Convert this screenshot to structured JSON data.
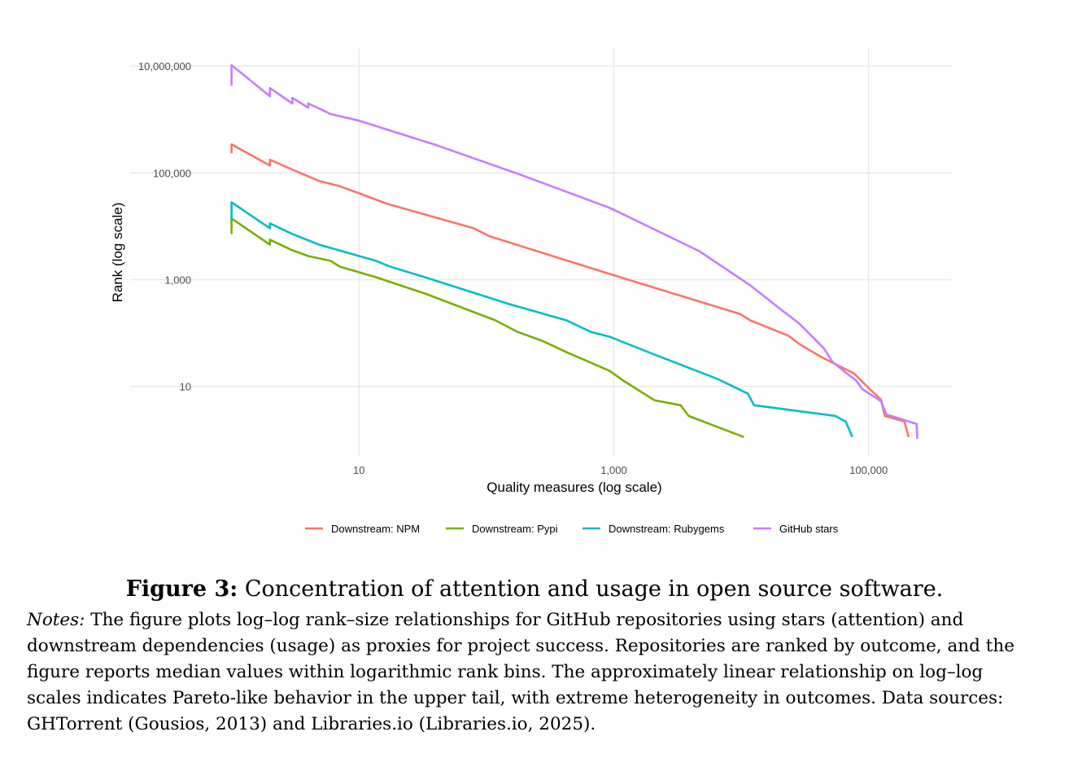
{
  "chart_data": {
    "type": "line",
    "title": "",
    "xlabel": "Quality measures (log scale)",
    "ylabel": "Rank (log scale)",
    "xscale": "log",
    "yscale": "log",
    "xlim": [
      0.16,
      450000
    ],
    "ylim": [
      0.5,
      21000000
    ],
    "grid": true,
    "legend_position": "bottom",
    "x_ticks": [
      {
        "value": 10,
        "label": "10"
      },
      {
        "value": 1000,
        "label": "1,000"
      },
      {
        "value": 100000,
        "label": "100,000"
      }
    ],
    "y_ticks": [
      {
        "value": 10,
        "label": "10"
      },
      {
        "value": 1000,
        "label": "1,000"
      },
      {
        "value": 100000,
        "label": "100,000"
      },
      {
        "value": 10000000,
        "label": "10,000,000"
      }
    ],
    "series": [
      {
        "name": "Downstream: NPM",
        "color": "#F8766D",
        "x": [
          1,
          1,
          2,
          2,
          3,
          4.86,
          6.92,
          10,
          16.7,
          79.6,
          107,
          929,
          9780,
          11800,
          23600,
          28600,
          42600,
          76700,
          103000,
          125000,
          134000,
          191000,
          206000
        ],
        "y": [
          232000,
          342000,
          137000,
          176000,
          115000,
          70400,
          57000,
          41500,
          26300,
          9160,
          6440,
          1280,
          228,
          173,
          88.4,
          62.2,
          35.5,
          17.5,
          8.7,
          5.7,
          2.8,
          2.2,
          1.13
        ]
      },
      {
        "name": "Downstream: Pypi",
        "color": "#7CAE00",
        "x": [
          1,
          1,
          2,
          2,
          3,
          4,
          6,
          7.03,
          13.6,
          32.9,
          118,
          176,
          274,
          426,
          929,
          1190,
          2090,
          3340,
          3870,
          10500
        ],
        "y": [
          7160,
          14000,
          4530,
          5600,
          3550,
          2770,
          2250,
          1760,
          1110,
          550,
          173,
          105,
          71.6,
          43.8,
          19.5,
          12.8,
          5.5,
          4.46,
          2.8,
          1.13
        ]
      },
      {
        "name": "Downstream: Rubygems",
        "color": "#00BFC4",
        "x": [
          1,
          1,
          2,
          2,
          3,
          4.86,
          13.6,
          17.5,
          32.9,
          152,
          426,
          662,
          929,
          1940,
          6580,
          11300,
          12600,
          54700,
          66200,
          74500
        ],
        "y": [
          13000,
          28200,
          9160,
          11300,
          7160,
          4530,
          2250,
          1760,
          1110,
          348,
          173,
          105,
          85.4,
          42.3,
          13.7,
          7.3,
          4.46,
          2.8,
          2.2,
          1.13
        ]
      },
      {
        "name": "GitHub stars",
        "color": "#C77CFF",
        "x": [
          1,
          1,
          2,
          2,
          3,
          3,
          4,
          4,
          6,
          10,
          40.5,
          176,
          929,
          4690,
          11800,
          19500,
          28600,
          44500,
          51600,
          66200,
          80200,
          88900,
          125000,
          138000,
          238000,
          241000
        ],
        "y": [
          4300000,
          10400000,
          2720000,
          3870000,
          1990000,
          2540000,
          1660000,
          1990000,
          1260000,
          949000,
          330000,
          96600,
          22100,
          3420,
          782,
          303,
          150,
          52,
          29.7,
          18.2,
          12.8,
          9.0,
          5.3,
          3.0,
          1.99,
          1.05
        ]
      }
    ]
  },
  "caption": {
    "label": "Figure 3:",
    "text": "Concentration of attention and usage in open source software."
  },
  "notes": {
    "label": "Notes:",
    "lines": [
      "The figure plots log–log rank–size relationships for GitHub repositories using stars (attention) and",
      "downstream dependencies (usage) as proxies for project success. Repositories are ranked by outcome, and the",
      "figure reports median values within logarithmic rank bins. The approximately linear relationship on log–log",
      "scales indicates Pareto-like behavior in the upper tail, with extreme heterogeneity in outcomes. Data sources:",
      "GHTorrent (Gousios, 2013) and Libraries.io (Libraries.io, 2025)."
    ]
  }
}
